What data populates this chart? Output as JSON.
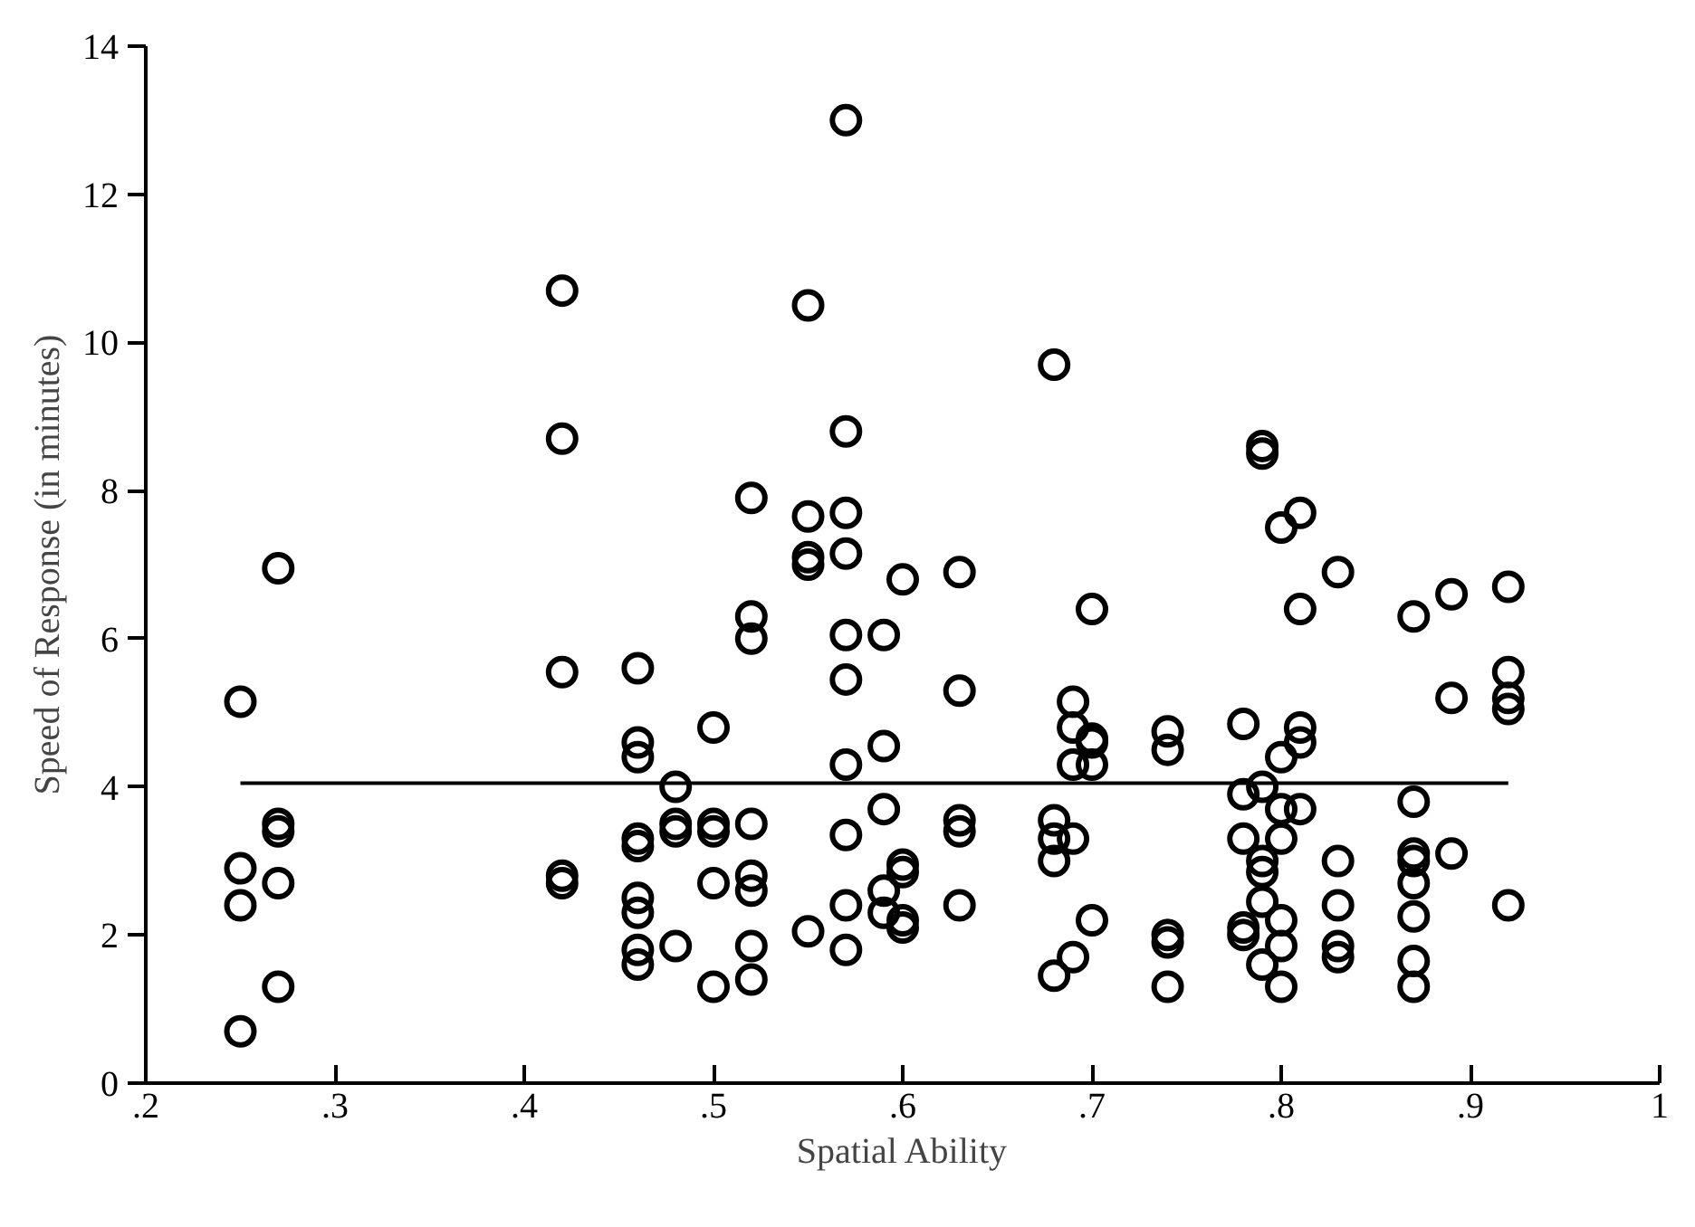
{
  "chart_data": {
    "type": "scatter",
    "xlabel": "Spatial Ability",
    "ylabel": "Speed of Response (in minutes)",
    "xlim": [
      0.2,
      1
    ],
    "ylim": [
      0,
      14
    ],
    "xticks": [
      {
        "value": 0.2,
        "label": ".2"
      },
      {
        "value": 0.3,
        "label": ".3"
      },
      {
        "value": 0.4,
        "label": ".4"
      },
      {
        "value": 0.5,
        "label": ".5"
      },
      {
        "value": 0.6,
        "label": ".6"
      },
      {
        "value": 0.7,
        "label": ".7"
      },
      {
        "value": 0.8,
        "label": ".8"
      },
      {
        "value": 0.9,
        "label": ".9"
      },
      1
    ],
    "yticks": [
      0,
      2,
      4,
      6,
      8,
      10,
      12,
      14
    ],
    "grid": false,
    "marker": "circle",
    "series": [
      {
        "color": "#000000",
        "x": [
          0.25,
          0.25,
          0.25,
          0.25,
          0.27,
          0.27,
          0.27,
          0.27,
          0.27,
          0.42,
          0.42,
          0.42,
          0.42,
          0.42,
          0.46,
          0.46,
          0.46,
          0.46,
          0.46,
          0.46,
          0.46,
          0.46,
          0.46,
          0.48,
          0.48,
          0.48,
          0.48,
          0.5,
          0.5,
          0.5,
          0.5,
          0.5,
          0.52,
          0.52,
          0.52,
          0.52,
          0.52,
          0.52,
          0.52,
          0.52,
          0.55,
          0.55,
          0.55,
          0.55,
          0.55,
          0.57,
          0.57,
          0.57,
          0.57,
          0.57,
          0.57,
          0.57,
          0.57,
          0.57,
          0.57,
          0.59,
          0.59,
          0.59,
          0.59,
          0.59,
          0.6,
          0.6,
          0.6,
          0.6,
          0.6,
          0.63,
          0.63,
          0.63,
          0.63,
          0.63,
          0.68,
          0.68,
          0.68,
          0.68,
          0.68,
          0.69,
          0.69,
          0.69,
          0.69,
          0.69,
          0.7,
          0.7,
          0.7,
          0.7,
          0.7,
          0.74,
          0.74,
          0.74,
          0.74,
          0.74,
          0.78,
          0.78,
          0.78,
          0.78,
          0.78,
          0.79,
          0.79,
          0.79,
          0.79,
          0.79,
          0.79,
          0.79,
          0.8,
          0.8,
          0.8,
          0.8,
          0.8,
          0.8,
          0.8,
          0.81,
          0.81,
          0.81,
          0.81,
          0.81,
          0.83,
          0.83,
          0.83,
          0.83,
          0.83,
          0.87,
          0.87,
          0.87,
          0.87,
          0.87,
          0.87,
          0.87,
          0.87,
          0.89,
          0.89,
          0.89,
          0.92,
          0.92,
          0.92,
          0.92,
          0.92
        ],
        "values": [
          5.15,
          2.9,
          2.4,
          0.7,
          6.95,
          3.5,
          3.4,
          2.7,
          1.3,
          10.7,
          8.7,
          5.55,
          2.8,
          2.7,
          5.6,
          4.6,
          4.4,
          3.3,
          3.2,
          2.5,
          2.3,
          1.8,
          1.6,
          4.0,
          3.5,
          3.4,
          1.85,
          4.8,
          3.5,
          3.4,
          2.7,
          1.3,
          7.9,
          6.3,
          6.0,
          3.5,
          2.8,
          2.6,
          1.85,
          1.4,
          10.5,
          7.65,
          7.1,
          7.0,
          2.05,
          13.0,
          8.8,
          7.7,
          7.15,
          6.05,
          5.45,
          4.3,
          3.35,
          2.4,
          1.8,
          6.05,
          4.55,
          3.7,
          2.6,
          2.3,
          6.8,
          2.95,
          2.85,
          2.2,
          2.1,
          6.9,
          5.3,
          3.55,
          3.4,
          2.4,
          9.7,
          3.55,
          3.3,
          3.0,
          1.45,
          5.15,
          4.8,
          4.3,
          3.3,
          1.7,
          6.4,
          4.65,
          4.6,
          4.3,
          2.2,
          4.75,
          4.5,
          2.0,
          1.9,
          1.3,
          4.85,
          3.9,
          3.3,
          2.1,
          2.0,
          8.6,
          8.5,
          4.0,
          3.0,
          2.85,
          2.45,
          1.6,
          7.5,
          4.4,
          3.7,
          3.3,
          2.2,
          1.85,
          1.3,
          7.7,
          6.4,
          4.8,
          4.6,
          3.7,
          6.9,
          3.0,
          2.4,
          1.85,
          1.7,
          6.3,
          3.8,
          3.1,
          3.0,
          2.7,
          2.25,
          1.65,
          1.3,
          6.6,
          5.2,
          3.1,
          6.7,
          5.55,
          5.2,
          5.05,
          2.4
        ]
      },
      {
        "type": "line",
        "color": "#000000",
        "marker": "none",
        "line_style": "solid",
        "x": [
          0.25,
          0.92
        ],
        "values": [
          4.05,
          4.05
        ]
      }
    ]
  }
}
